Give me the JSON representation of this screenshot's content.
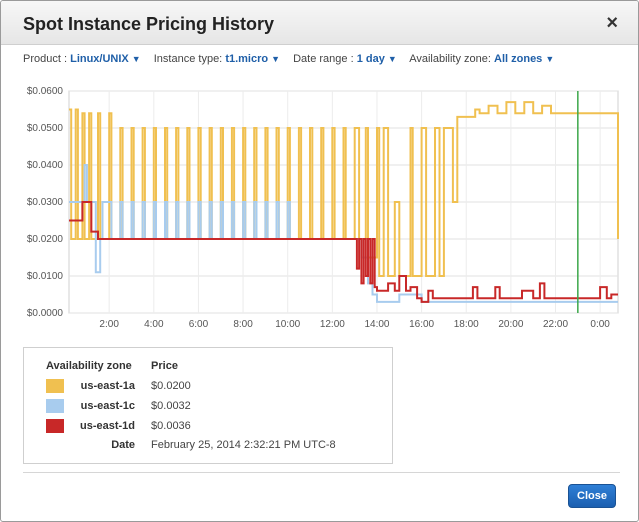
{
  "dialog": {
    "title": "Spot Instance Pricing History",
    "close_glyph": "×"
  },
  "filters": {
    "product_label": "Product :",
    "product_value": "Linux/UNIX",
    "instance_label": "Instance type:",
    "instance_value": "t1.micro",
    "range_label": "Date range :",
    "range_value": "1 day",
    "zone_label": "Availability zone:",
    "zone_value": "All zones"
  },
  "chart_data": {
    "type": "line",
    "title": "",
    "xlabel": "",
    "ylabel": "",
    "x_ticks": [
      "2:00",
      "4:00",
      "6:00",
      "8:00",
      "10:00",
      "12:00",
      "14:00",
      "16:00",
      "18:00",
      "20:00",
      "22:00",
      "0:00"
    ],
    "y_ticks": [
      "$0.0000",
      "$0.0100",
      "$0.0200",
      "$0.0300",
      "$0.0400",
      "$0.0500",
      "$0.0600"
    ],
    "ylim": [
      0,
      0.06
    ],
    "xlim_hours": [
      0.2,
      24.8
    ],
    "grid": true,
    "marker_hour": 23.0,
    "series": [
      {
        "name": "us-east-1a",
        "color": "#f0c050",
        "x": [
          0.2,
          0.3,
          0.5,
          0.6,
          0.8,
          0.9,
          1.1,
          1.2,
          1.5,
          1.6,
          2.0,
          2.1,
          2.5,
          2.6,
          3.0,
          3.1,
          3.5,
          3.6,
          4.0,
          4.1,
          4.5,
          4.6,
          5.0,
          5.1,
          5.5,
          5.6,
          6.0,
          6.1,
          6.5,
          6.6,
          7.0,
          7.1,
          7.5,
          7.6,
          8.0,
          8.1,
          8.5,
          8.6,
          9.0,
          9.1,
          9.5,
          9.6,
          10.0,
          10.1,
          10.5,
          10.6,
          11.0,
          11.1,
          11.5,
          11.6,
          12.0,
          12.1,
          12.5,
          12.6,
          13.0,
          13.2,
          13.5,
          13.6,
          14.0,
          14.1,
          14.3,
          14.5,
          14.8,
          15.0,
          15.5,
          15.6,
          16.0,
          16.2,
          16.6,
          16.8,
          17.0,
          17.4,
          17.6,
          18.0,
          18.4,
          18.6,
          19.0,
          19.4,
          19.8,
          20.2,
          20.6,
          21.0,
          21.4,
          21.8,
          22.2,
          22.5,
          23.0,
          23.5,
          24.0,
          24.5,
          24.8
        ],
        "y": [
          0.055,
          0.02,
          0.055,
          0.02,
          0.054,
          0.02,
          0.054,
          0.02,
          0.054,
          0.02,
          0.054,
          0.02,
          0.05,
          0.02,
          0.05,
          0.02,
          0.05,
          0.02,
          0.05,
          0.02,
          0.05,
          0.02,
          0.05,
          0.02,
          0.05,
          0.02,
          0.05,
          0.02,
          0.05,
          0.02,
          0.05,
          0.02,
          0.05,
          0.02,
          0.05,
          0.02,
          0.05,
          0.02,
          0.05,
          0.02,
          0.05,
          0.02,
          0.05,
          0.02,
          0.05,
          0.02,
          0.05,
          0.02,
          0.05,
          0.02,
          0.05,
          0.02,
          0.05,
          0.02,
          0.05,
          0.02,
          0.05,
          0.015,
          0.05,
          0.01,
          0.05,
          0.01,
          0.03,
          0.01,
          0.05,
          0.01,
          0.05,
          0.01,
          0.05,
          0.01,
          0.05,
          0.03,
          0.053,
          0.053,
          0.055,
          0.054,
          0.056,
          0.054,
          0.057,
          0.054,
          0.057,
          0.054,
          0.056,
          0.054,
          0.054,
          0.054,
          0.054,
          0.054,
          0.054,
          0.054,
          0.02
        ]
      },
      {
        "name": "us-east-1c",
        "color": "#a8ccee",
        "x": [
          0.2,
          0.8,
          0.9,
          1.0,
          1.3,
          1.4,
          1.6,
          1.7,
          2.0,
          2.1,
          2.5,
          2.6,
          3.0,
          3.1,
          3.5,
          3.6,
          4.0,
          4.1,
          4.5,
          4.6,
          5.0,
          5.1,
          5.5,
          5.6,
          6.0,
          6.1,
          6.5,
          6.6,
          7.0,
          7.1,
          7.5,
          7.6,
          8.0,
          8.1,
          8.5,
          8.6,
          9.0,
          9.1,
          9.5,
          9.6,
          10.0,
          10.1,
          10.5,
          12.0,
          13.0,
          13.3,
          13.6,
          13.8,
          14.0,
          14.5,
          15.0,
          16.0,
          18.0,
          20.0,
          22.0,
          24.8
        ],
        "y": [
          0.03,
          0.03,
          0.04,
          0.03,
          0.03,
          0.011,
          0.02,
          0.03,
          0.03,
          0.02,
          0.03,
          0.02,
          0.03,
          0.02,
          0.03,
          0.02,
          0.03,
          0.02,
          0.03,
          0.02,
          0.03,
          0.02,
          0.03,
          0.02,
          0.03,
          0.02,
          0.03,
          0.02,
          0.03,
          0.02,
          0.03,
          0.02,
          0.03,
          0.02,
          0.03,
          0.02,
          0.03,
          0.02,
          0.03,
          0.02,
          0.03,
          0.02,
          0.02,
          0.02,
          0.02,
          0.015,
          0.008,
          0.005,
          0.003,
          0.003,
          0.005,
          0.003,
          0.003,
          0.003,
          0.003,
          0.003
        ]
      },
      {
        "name": "us-east-1d",
        "color": "#c82828",
        "x": [
          0.2,
          0.8,
          0.8,
          1.2,
          1.2,
          1.5,
          1.5,
          2.0,
          4.0,
          6.0,
          8.0,
          10.0,
          12.0,
          13.0,
          13.1,
          13.2,
          13.3,
          13.4,
          13.5,
          13.6,
          13.7,
          13.8,
          13.9,
          14.0,
          14.3,
          14.5,
          14.8,
          15.0,
          15.3,
          15.5,
          15.8,
          16.0,
          16.3,
          16.5,
          17.0,
          17.5,
          18.0,
          18.3,
          18.5,
          19.0,
          19.3,
          19.5,
          20.0,
          20.5,
          21.0,
          21.3,
          21.5,
          22.0,
          22.5,
          23.0,
          23.5,
          24.0,
          24.3,
          24.5,
          24.8
        ],
        "y": [
          0.025,
          0.025,
          0.03,
          0.03,
          0.022,
          0.022,
          0.02,
          0.02,
          0.02,
          0.02,
          0.02,
          0.02,
          0.02,
          0.02,
          0.012,
          0.02,
          0.008,
          0.02,
          0.01,
          0.02,
          0.008,
          0.02,
          0.007,
          0.006,
          0.006,
          0.008,
          0.006,
          0.01,
          0.006,
          0.007,
          0.004,
          0.003,
          0.006,
          0.004,
          0.004,
          0.004,
          0.004,
          0.007,
          0.004,
          0.004,
          0.007,
          0.004,
          0.004,
          0.006,
          0.004,
          0.008,
          0.004,
          0.004,
          0.004,
          0.004,
          0.004,
          0.007,
          0.004,
          0.005,
          0.005
        ]
      }
    ]
  },
  "legend": {
    "zone_header": "Availability zone",
    "price_header": "Price",
    "rows": [
      {
        "zone": "us-east-1a",
        "price": "$0.0200",
        "color": "#f0c050"
      },
      {
        "zone": "us-east-1c",
        "price": "$0.0032",
        "color": "#a8ccee"
      },
      {
        "zone": "us-east-1d",
        "price": "$0.0036",
        "color": "#c82828"
      }
    ],
    "date_label": "Date",
    "date_value": "February 25, 2014 2:32:21 PM UTC-8"
  },
  "footer": {
    "close_label": "Close"
  }
}
